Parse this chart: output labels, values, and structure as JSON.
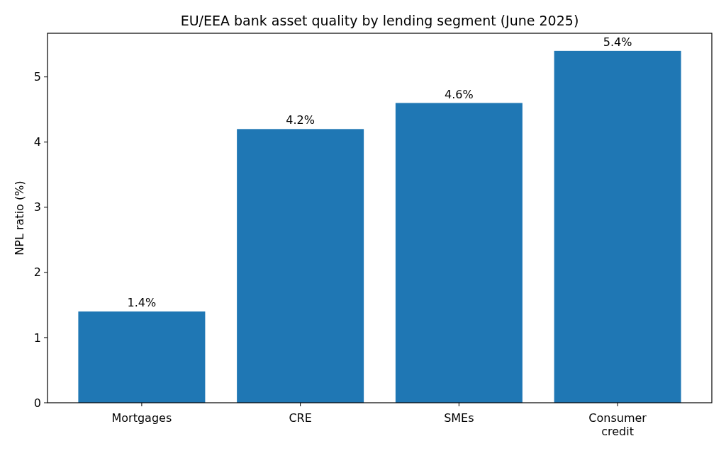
{
  "chart_data": {
    "type": "bar",
    "title": "EU/EEA bank asset quality by lending segment (June 2025)",
    "ylabel": "NPL ratio (%)",
    "categories": [
      "Mortgages",
      "CRE",
      "SMEs",
      "Consumer credit"
    ],
    "values": [
      1.4,
      4.2,
      4.6,
      5.4
    ],
    "value_labels": [
      "1.4%",
      "4.2%",
      "4.6%",
      "5.4%"
    ],
    "color": "#1f77b4",
    "ylim": [
      0,
      5.67
    ],
    "yticks": [
      0,
      1,
      2,
      3,
      4,
      5
    ],
    "grid": false
  }
}
